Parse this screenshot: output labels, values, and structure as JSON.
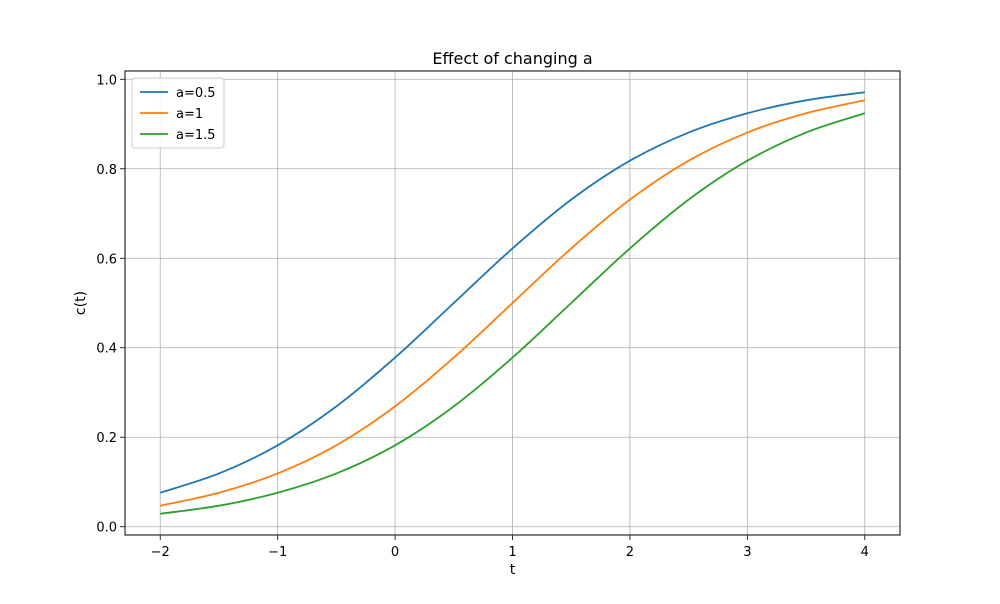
{
  "chart_data": {
    "type": "line",
    "title": "Effect of changing a",
    "xlabel": "t",
    "ylabel": "c(t)",
    "xlim": [
      -2.3,
      4.3
    ],
    "ylim": [
      -0.0185,
      1.0185
    ],
    "xticks": [
      -2,
      -1,
      0,
      1,
      2,
      3,
      4
    ],
    "xtick_labels": [
      "−2",
      "−1",
      "0",
      "1",
      "2",
      "3",
      "4"
    ],
    "yticks": [
      0.0,
      0.2,
      0.4,
      0.6,
      0.8,
      1.0
    ],
    "ytick_labels": [
      "0.0",
      "0.2",
      "0.4",
      "0.6",
      "0.8",
      "1.0"
    ],
    "grid": true,
    "legend_position": "upper-left",
    "x": [
      -2,
      -1.5,
      -1,
      -0.5,
      0,
      0.5,
      1,
      1.5,
      2,
      2.5,
      3,
      3.5,
      4
    ],
    "series": [
      {
        "name": "a=0.5",
        "color": "#1f77b4",
        "values": [
          0.076,
          0.119,
          0.182,
          0.269,
          0.378,
          0.5,
          0.622,
          0.731,
          0.818,
          0.881,
          0.924,
          0.953,
          0.971
        ]
      },
      {
        "name": "a=1",
        "color": "#ff7f0e",
        "values": [
          0.047,
          0.076,
          0.119,
          0.182,
          0.269,
          0.378,
          0.5,
          0.622,
          0.731,
          0.818,
          0.881,
          0.924,
          0.953
        ]
      },
      {
        "name": "a=1.5",
        "color": "#2ca02c",
        "values": [
          0.029,
          0.047,
          0.076,
          0.119,
          0.182,
          0.269,
          0.378,
          0.5,
          0.622,
          0.731,
          0.818,
          0.881,
          0.924
        ]
      }
    ]
  }
}
